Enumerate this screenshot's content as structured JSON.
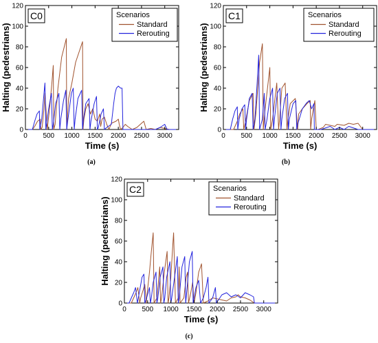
{
  "colors": {
    "standard": "#a0522d",
    "rerouting": "#2222dd"
  },
  "chart_data": [
    {
      "id": "a",
      "type": "line",
      "caption": "(a)",
      "panel_label": "C0",
      "xlabel": "Time (s)",
      "ylabel": "Halting (pedestrians)",
      "xlim": [
        0,
        3300
      ],
      "ylim": [
        0,
        120
      ],
      "xticks": [
        0,
        500,
        1000,
        1500,
        2000,
        2500,
        3000
      ],
      "yticks": [
        0,
        20,
        40,
        60,
        80,
        100,
        120
      ],
      "legend": {
        "title": "Scenarios",
        "position": "top-right"
      },
      "series": [
        {
          "name": "Standard",
          "x": [
            0,
            150,
            200,
            260,
            320,
            330,
            360,
            400,
            420,
            470,
            520,
            570,
            600,
            610,
            640,
            700,
            780,
            880,
            890,
            930,
            1000,
            1080,
            1230,
            1240,
            1260,
            1300,
            1350,
            1400,
            1450,
            1500,
            1550,
            1600,
            1620,
            1650,
            1700,
            1750,
            1800,
            1850,
            1950,
            2000,
            2020,
            2050,
            2100,
            2150,
            2200,
            2300,
            2400,
            2500,
            2550,
            2600,
            2700,
            2800,
            2900,
            3000,
            3100,
            3300
          ],
          "y": [
            0,
            0,
            3,
            8,
            10,
            0,
            2,
            20,
            35,
            0,
            20,
            45,
            62,
            0,
            5,
            40,
            70,
            88,
            0,
            30,
            45,
            65,
            85,
            0,
            10,
            20,
            25,
            15,
            20,
            10,
            8,
            15,
            3,
            10,
            12,
            5,
            0,
            6,
            8,
            10,
            5,
            0,
            2,
            5,
            3,
            0,
            2,
            6,
            8,
            0,
            1,
            0,
            2,
            1,
            0,
            0
          ]
        },
        {
          "name": "Rerouting",
          "x": [
            0,
            150,
            200,
            250,
            300,
            310,
            350,
            400,
            420,
            440,
            500,
            560,
            580,
            600,
            650,
            720,
            740,
            760,
            820,
            870,
            890,
            910,
            990,
            1030,
            1050,
            1070,
            1130,
            1210,
            1230,
            1250,
            1300,
            1370,
            1390,
            1410,
            1480,
            1530,
            1550,
            1570,
            1630,
            1680,
            1700,
            1750,
            1850,
            1900,
            1930,
            1960,
            2000,
            2050,
            2080,
            2100,
            2200,
            2800,
            2900,
            3000,
            3050,
            3100,
            3300
          ],
          "y": [
            0,
            0,
            8,
            15,
            18,
            0,
            10,
            35,
            45,
            0,
            20,
            35,
            0,
            5,
            25,
            35,
            0,
            10,
            28,
            38,
            0,
            8,
            35,
            40,
            0,
            10,
            30,
            38,
            0,
            10,
            25,
            30,
            0,
            8,
            25,
            32,
            0,
            2,
            15,
            20,
            0,
            2,
            5,
            25,
            35,
            40,
            42,
            40,
            40,
            0,
            0,
            0,
            2,
            5,
            0,
            0,
            0
          ]
        }
      ]
    },
    {
      "id": "b",
      "type": "line",
      "caption": "(b)",
      "panel_label": "C1",
      "xlabel": "Time (s)",
      "ylabel": "Halting (pedestrians)",
      "xlim": [
        0,
        3300
      ],
      "ylim": [
        0,
        120
      ],
      "xticks": [
        0,
        500,
        1000,
        1500,
        2000,
        2500,
        3000
      ],
      "yticks": [
        0,
        20,
        40,
        60,
        80,
        100,
        120
      ],
      "legend": {
        "title": "Scenarios",
        "position": "top-right"
      },
      "series": [
        {
          "name": "Standard",
          "x": [
            0,
            200,
            220,
            300,
            350,
            420,
            440,
            480,
            560,
            640,
            660,
            700,
            780,
            840,
            860,
            900,
            1000,
            1020,
            1060,
            1150,
            1190,
            1210,
            1260,
            1330,
            1370,
            1390,
            1440,
            1550,
            1600,
            1620,
            1700,
            1800,
            1870,
            1880,
            1900,
            1970,
            2000,
            2040,
            2150,
            2200,
            2400,
            2450,
            2600,
            2700,
            2800,
            2900,
            3000,
            3300
          ],
          "y": [
            0,
            0,
            0,
            8,
            15,
            20,
            0,
            8,
            28,
            35,
            0,
            15,
            65,
            83,
            0,
            20,
            60,
            0,
            10,
            45,
            0,
            10,
            40,
            45,
            0,
            10,
            25,
            30,
            0,
            15,
            20,
            25,
            28,
            0,
            10,
            28,
            0,
            0,
            2,
            5,
            3,
            5,
            4,
            6,
            5,
            6,
            0,
            0
          ]
        },
        {
          "name": "Rerouting",
          "x": [
            0,
            150,
            200,
            250,
            300,
            310,
            340,
            400,
            460,
            480,
            500,
            560,
            620,
            640,
            680,
            740,
            760,
            780,
            840,
            880,
            900,
            940,
            1000,
            1060,
            1080,
            1100,
            1160,
            1220,
            1240,
            1260,
            1320,
            1380,
            1400,
            1420,
            1500,
            1560,
            1580,
            1600,
            1700,
            1780,
            1800,
            1850,
            1900,
            1950,
            1960,
            2000,
            2100,
            2300,
            2400,
            2500,
            2600,
            2700,
            2900,
            3300
          ],
          "y": [
            0,
            0,
            10,
            18,
            22,
            0,
            10,
            20,
            24,
            0,
            10,
            30,
            35,
            0,
            10,
            55,
            72,
            0,
            10,
            35,
            0,
            10,
            30,
            40,
            0,
            10,
            35,
            40,
            0,
            10,
            30,
            35,
            0,
            10,
            25,
            28,
            0,
            5,
            20,
            25,
            26,
            28,
            20,
            25,
            0,
            0,
            0,
            3,
            0,
            2,
            0,
            3,
            0,
            0
          ]
        }
      ]
    },
    {
      "id": "c",
      "type": "line",
      "caption": "(c)",
      "panel_label": "C2",
      "xlabel": "Time (s)",
      "ylabel": "Halting (pedestrians)",
      "xlim": [
        0,
        3300
      ],
      "ylim": [
        0,
        120
      ],
      "xticks": [
        0,
        500,
        1000,
        1500,
        2000,
        2500,
        3000
      ],
      "yticks": [
        0,
        20,
        40,
        60,
        80,
        100,
        120
      ],
      "legend": {
        "title": "Scenarios",
        "position": "top-right"
      },
      "series": [
        {
          "name": "Standard",
          "x": [
            0,
            150,
            200,
            250,
            290,
            330,
            350,
            400,
            440,
            470,
            480,
            540,
            580,
            620,
            640,
            700,
            760,
            780,
            800,
            860,
            920,
            940,
            960,
            1000,
            1040,
            1060,
            1100,
            1160,
            1180,
            1200,
            1280,
            1330,
            1360,
            1380,
            1430,
            1470,
            1500,
            1540,
            1600,
            1640,
            1660,
            1700,
            1800,
            1900,
            2000,
            2100,
            2200,
            2300,
            2400,
            2450,
            2500,
            2600,
            2700,
            2800,
            2900,
            3300
          ],
          "y": [
            0,
            0,
            5,
            10,
            15,
            0,
            5,
            12,
            18,
            0,
            5,
            30,
            50,
            68,
            0,
            5,
            35,
            0,
            5,
            30,
            50,
            0,
            5,
            25,
            55,
            68,
            0,
            5,
            35,
            0,
            5,
            25,
            30,
            0,
            10,
            20,
            0,
            10,
            30,
            35,
            38,
            0,
            2,
            5,
            4,
            3,
            2,
            5,
            6,
            8,
            6,
            5,
            3,
            0,
            0,
            0
          ]
        },
        {
          "name": "Rerouting",
          "x": [
            0,
            100,
            150,
            200,
            240,
            280,
            300,
            340,
            380,
            420,
            440,
            480,
            540,
            560,
            580,
            620,
            680,
            700,
            720,
            770,
            830,
            850,
            870,
            910,
            980,
            1000,
            1020,
            1080,
            1140,
            1160,
            1180,
            1240,
            1300,
            1320,
            1340,
            1400,
            1460,
            1480,
            1500,
            1540,
            1600,
            1640,
            1700,
            1760,
            1800,
            1820,
            1900,
            1960,
            1980,
            2100,
            2200,
            2300,
            2400,
            2500,
            2600,
            2700,
            2780,
            2800,
            3300
          ],
          "y": [
            0,
            0,
            5,
            10,
            15,
            0,
            5,
            15,
            25,
            28,
            0,
            5,
            15,
            0,
            5,
            20,
            30,
            0,
            5,
            25,
            35,
            0,
            5,
            25,
            40,
            0,
            5,
            25,
            45,
            0,
            5,
            35,
            45,
            0,
            10,
            40,
            50,
            0,
            5,
            15,
            22,
            0,
            5,
            15,
            25,
            0,
            5,
            15,
            0,
            8,
            10,
            6,
            8,
            5,
            10,
            8,
            6,
            0,
            0
          ]
        }
      ]
    }
  ]
}
